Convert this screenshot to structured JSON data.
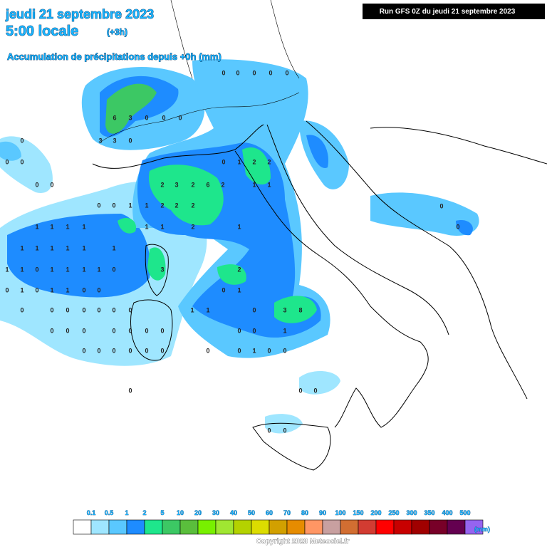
{
  "header": {
    "date": "jeudi 21 septembre 2023",
    "time": "5:00 locale",
    "offset": "(+3h)",
    "title": "Accumulation de précipitations depuis +0h (mm)",
    "run": "Run GFS 0Z du jeudi 21 septembre 2023"
  },
  "map": {
    "values": [
      0,
      0,
      0,
      0,
      0,
      6,
      3,
      0,
      0,
      0,
      3,
      3,
      0,
      0,
      0,
      0,
      0,
      0,
      0,
      1,
      2,
      2,
      2,
      3,
      2,
      6,
      2,
      1,
      1,
      0,
      0,
      1,
      1,
      2,
      2,
      2,
      1,
      1,
      1,
      1,
      1,
      1,
      2,
      1,
      1,
      1,
      1,
      1,
      1,
      1,
      1,
      1,
      0,
      1,
      1,
      1,
      1,
      0,
      3,
      2,
      0,
      1,
      0,
      1,
      1,
      0,
      0,
      0,
      1,
      0,
      0,
      0,
      0,
      0,
      0,
      0,
      1,
      1,
      0,
      3,
      8,
      0,
      0,
      0,
      0,
      0,
      0,
      0,
      0,
      0,
      1,
      0,
      0,
      0,
      0,
      0,
      0,
      0,
      0,
      1,
      0,
      0,
      0,
      0,
      0,
      0,
      0,
      0,
      0
    ]
  },
  "legend": {
    "labels": [
      "0.1",
      "0.5",
      "1",
      "2",
      "5",
      "10",
      "20",
      "30",
      "40",
      "50",
      "60",
      "70",
      "80",
      "90",
      "100",
      "150",
      "200",
      "250",
      "300",
      "350",
      "400",
      "500"
    ],
    "colors": [
      "#ffffff",
      "#9fe6ff",
      "#5ac8ff",
      "#1e8cff",
      "#1ee68c",
      "#3cc864",
      "#5abe3c",
      "#78f000",
      "#a0e632",
      "#b4d200",
      "#dcdc00",
      "#d2a000",
      "#e68c00",
      "#ff9664",
      "#c8a0a0",
      "#d26e32",
      "#d23c32",
      "#ff0000",
      "#c80000",
      "#a00000",
      "#780028",
      "#640050",
      "#9664f0"
    ],
    "unit": "(mm)"
  },
  "footer": {
    "copyright": "Copyright 2023 Meteociel.fr"
  }
}
